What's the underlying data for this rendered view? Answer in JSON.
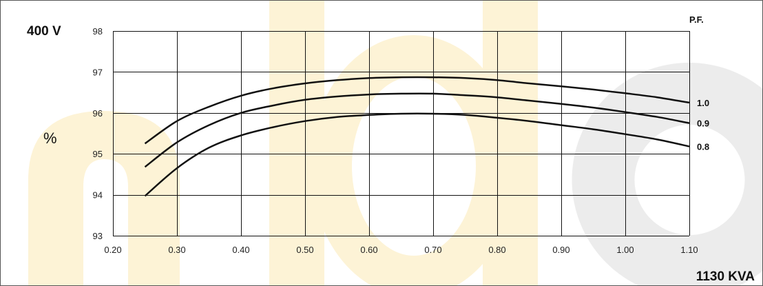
{
  "colors": {
    "background": "#ffffff",
    "watermark_yellow": "#fdf3d6",
    "watermark_gray": "#ececec",
    "grid": "#111111",
    "series": "#111111"
  },
  "chart_data": {
    "type": "line",
    "title": "",
    "voltage_label": "400 V",
    "xlabel": "1130 KVA",
    "ylabel": "%",
    "legend_title": "P.F.",
    "xlim": [
      0.2,
      1.1
    ],
    "ylim": [
      93,
      98
    ],
    "x_ticks": [
      "0.20",
      "0.30",
      "0.40",
      "0.50",
      "0.60",
      "0.70",
      "0.80",
      "0.90",
      "1.00",
      "1.10"
    ],
    "y_ticks": [
      "93",
      "94",
      "95",
      "96",
      "97",
      "98"
    ],
    "grid": true,
    "series": [
      {
        "name": "1.0",
        "x": [
          0.25,
          0.3,
          0.35,
          0.4,
          0.45,
          0.5,
          0.55,
          0.6,
          0.65,
          0.7,
          0.75,
          0.8,
          0.85,
          0.9,
          0.95,
          1.0,
          1.05,
          1.1
        ],
        "y": [
          95.25,
          95.8,
          96.15,
          96.42,
          96.6,
          96.72,
          96.8,
          96.85,
          96.87,
          96.87,
          96.85,
          96.8,
          96.72,
          96.65,
          96.57,
          96.48,
          96.38,
          96.25
        ]
      },
      {
        "name": "0.9",
        "x": [
          0.25,
          0.3,
          0.35,
          0.4,
          0.45,
          0.5,
          0.55,
          0.6,
          0.65,
          0.7,
          0.75,
          0.8,
          0.85,
          0.9,
          0.95,
          1.0,
          1.05,
          1.1
        ],
        "y": [
          94.68,
          95.28,
          95.7,
          96.0,
          96.18,
          96.32,
          96.4,
          96.45,
          96.47,
          96.47,
          96.43,
          96.38,
          96.3,
          96.22,
          96.13,
          96.02,
          95.9,
          95.75
        ]
      },
      {
        "name": "0.8",
        "x": [
          0.25,
          0.3,
          0.35,
          0.4,
          0.45,
          0.5,
          0.55,
          0.6,
          0.65,
          0.7,
          0.75,
          0.8,
          0.85,
          0.9,
          0.95,
          1.0,
          1.05,
          1.1
        ],
        "y": [
          93.97,
          94.65,
          95.15,
          95.45,
          95.65,
          95.8,
          95.9,
          95.95,
          95.98,
          95.98,
          95.95,
          95.88,
          95.8,
          95.7,
          95.6,
          95.48,
          95.35,
          95.18
        ]
      }
    ]
  }
}
